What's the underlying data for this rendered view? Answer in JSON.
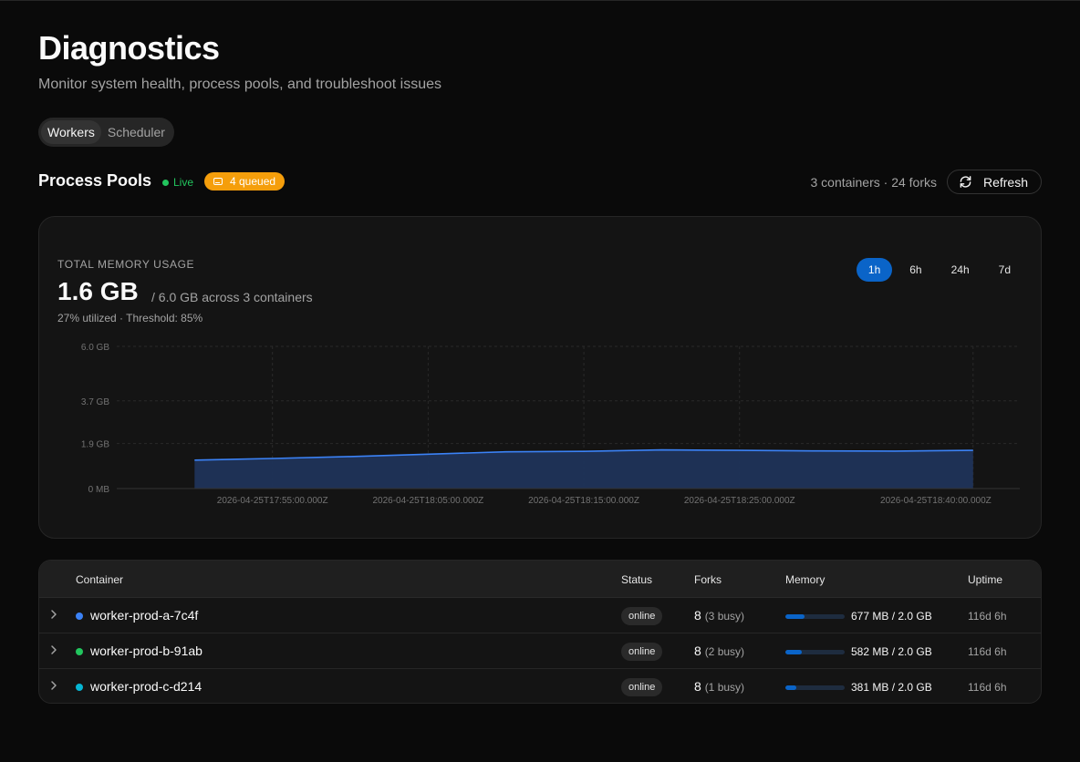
{
  "page": {
    "title": "Diagnostics",
    "subtitle": "Monitor system health, process pools, and troubleshoot issues"
  },
  "tabs": [
    {
      "label": "Workers",
      "active": true
    },
    {
      "label": "Scheduler",
      "active": false
    }
  ],
  "pools": {
    "title": "Process Pools",
    "live_label": "Live",
    "queued_label": "4 queued",
    "summary": "3 containers · 24 forks",
    "refresh_label": "Refresh"
  },
  "memory": {
    "label": "TOTAL MEMORY USAGE",
    "value": "1.6 GB",
    "of_text": "/ 6.0 GB across 3 containers",
    "utilization": "27% utilized · Threshold: 85%",
    "ranges": [
      {
        "label": "1h",
        "active": true
      },
      {
        "label": "6h",
        "active": false
      },
      {
        "label": "24h",
        "active": false
      },
      {
        "label": "7d",
        "active": false
      }
    ]
  },
  "chart_data": {
    "type": "area",
    "title": "",
    "xlabel": "",
    "ylabel": "",
    "y_unit": "GB",
    "ylim": [
      0,
      6.0
    ],
    "y_ticks": [
      {
        "value": 0,
        "label": "0 MB"
      },
      {
        "value": 1.9,
        "label": "1.9 GB"
      },
      {
        "value": 3.7,
        "label": "3.7 GB"
      },
      {
        "value": 6.0,
        "label": "6.0 GB"
      }
    ],
    "x_ticks": [
      "2026-04-25T17:55:00.000Z",
      "2026-04-25T18:05:00.000Z",
      "2026-04-25T18:15:00.000Z",
      "2026-04-25T18:25:00.000Z",
      "2026-04-25T18:40:00.000Z"
    ],
    "grid": true,
    "series": [
      {
        "color": "#3b82f6",
        "x": [
          "2026-04-25T17:50:00Z",
          "2026-04-25T17:55:00Z",
          "2026-04-25T18:00:00Z",
          "2026-04-25T18:05:00Z",
          "2026-04-25T18:10:00Z",
          "2026-04-25T18:15:00Z",
          "2026-04-25T18:20:00Z",
          "2026-04-25T18:25:00Z",
          "2026-04-25T18:30:00Z",
          "2026-04-25T18:35:00Z",
          "2026-04-25T18:40:00Z"
        ],
        "values": [
          1.2,
          1.27,
          1.35,
          1.45,
          1.55,
          1.57,
          1.63,
          1.61,
          1.59,
          1.58,
          1.61
        ]
      }
    ]
  },
  "table": {
    "headers": {
      "container": "Container",
      "status": "Status",
      "forks": "Forks",
      "memory": "Memory",
      "uptime": "Uptime"
    },
    "rows": [
      {
        "name": "worker-prod-a-7c4f",
        "dot_color": "#3b82f6",
        "status": "online",
        "forks": "8",
        "busy": "(3 busy)",
        "mem_fraction": 0.33,
        "memory": "677 MB / 2.0 GB",
        "uptime": "116d 6h"
      },
      {
        "name": "worker-prod-b-91ab",
        "dot_color": "#22c55e",
        "status": "online",
        "forks": "8",
        "busy": "(2 busy)",
        "mem_fraction": 0.28,
        "memory": "582 MB / 2.0 GB",
        "uptime": "116d 6h"
      },
      {
        "name": "worker-prod-c-d214",
        "dot_color": "#06b6d4",
        "status": "online",
        "forks": "8",
        "busy": "(1 busy)",
        "mem_fraction": 0.19,
        "memory": "381 MB / 2.0 GB",
        "uptime": "116d 6h"
      }
    ]
  }
}
